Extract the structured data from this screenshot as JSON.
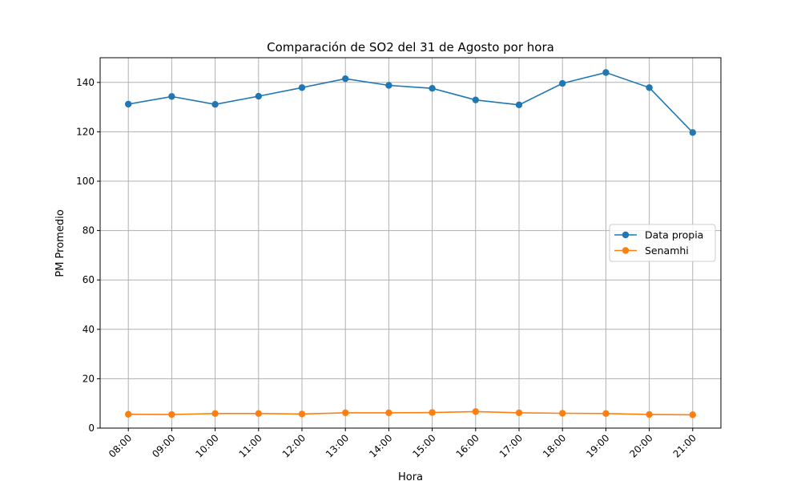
{
  "chart_data": {
    "type": "line",
    "title": "Comparación de SO2 del 31 de Agosto por hora",
    "xlabel": "Hora",
    "ylabel": "PM Promedio",
    "categories": [
      "08:00",
      "09:00",
      "10:00",
      "11:00",
      "12:00",
      "13:00",
      "14:00",
      "15:00",
      "16:00",
      "17:00",
      "18:00",
      "19:00",
      "20:00",
      "21:00"
    ],
    "yticks": [
      "0",
      "20",
      "40",
      "60",
      "80",
      "100",
      "120",
      "140"
    ],
    "ylim": [
      0,
      150
    ],
    "grid": true,
    "legend_position": "center-right",
    "series": [
      {
        "name": "Data propia",
        "color": "#1f77b4",
        "values": [
          131.2,
          134.3,
          131.1,
          134.4,
          137.9,
          141.5,
          138.8,
          137.6,
          132.9,
          130.9,
          139.6,
          144.0,
          137.9,
          119.7
        ]
      },
      {
        "name": "Senamhi",
        "color": "#ff7f0e",
        "values": [
          5.6,
          5.5,
          5.9,
          5.9,
          5.7,
          6.2,
          6.2,
          6.3,
          6.7,
          6.2,
          6.0,
          5.9,
          5.5,
          5.4
        ]
      }
    ]
  }
}
